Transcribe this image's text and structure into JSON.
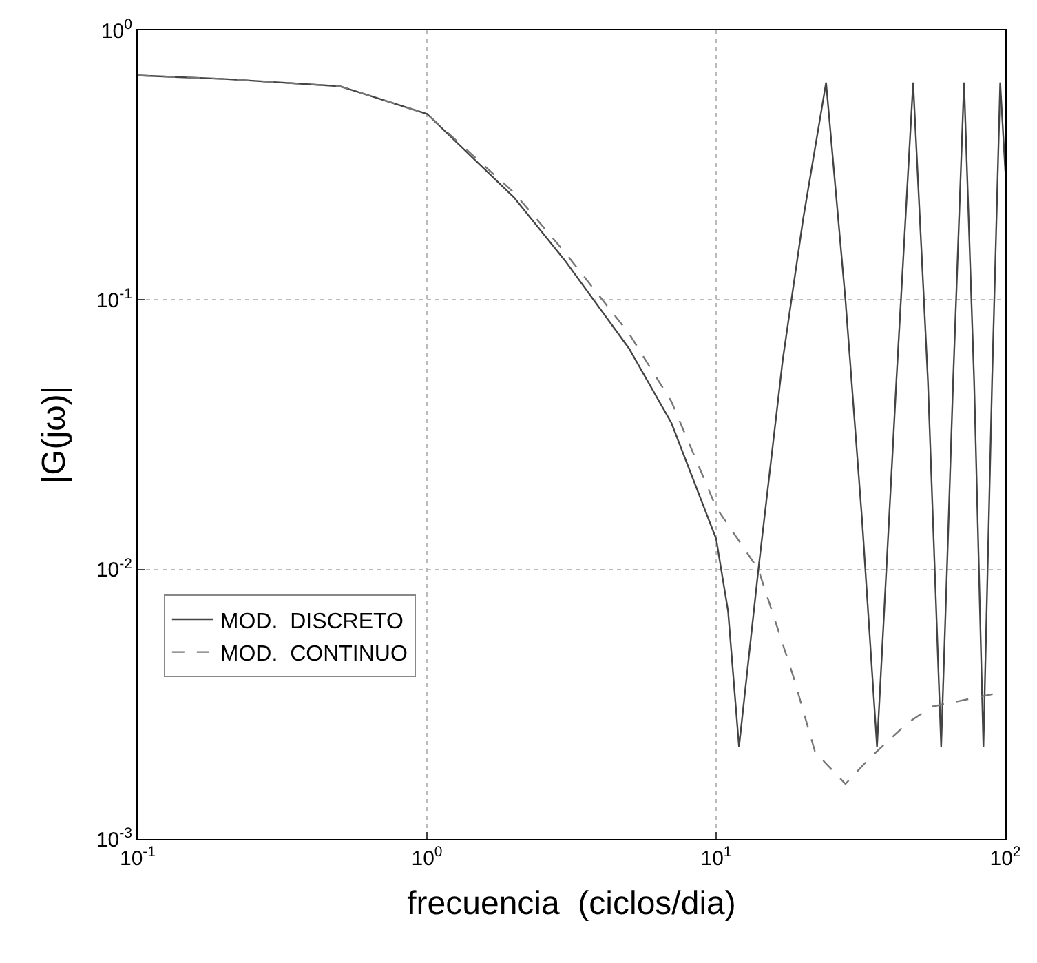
{
  "chart_data": {
    "type": "line",
    "xlabel": "frecuencia  (ciclos/dia)",
    "ylabel": "|G(jω)|",
    "log": "xy",
    "grid": true,
    "legend": "bottom left",
    "xlim": [
      0.1,
      100
    ],
    "ylim": [
      0.001,
      1
    ],
    "xticks": [
      {
        "value": 0.1,
        "label": "10$^{-1}$"
      },
      {
        "value": 1,
        "label": "10$^{0}$"
      },
      {
        "value": 10,
        "label": "10$^{1}$"
      },
      {
        "value": 100,
        "label": "10$^{2}$"
      }
    ],
    "yticks": [
      {
        "value": 0.001,
        "label": "10$^{-3}$"
      },
      {
        "value": 0.01,
        "label": "10$^{-2}$"
      },
      {
        "value": 0.1,
        "label": "10$^{-1}$"
      },
      {
        "value": 1,
        "label": "10$^{0}$"
      }
    ],
    "series": [
      {
        "name": "MOD.  DISCRETO",
        "color": "#444444",
        "line_style": "solid",
        "x": [
          0.1,
          0.2,
          0.5,
          1,
          2,
          3,
          5,
          7,
          10,
          11,
          12,
          14,
          17,
          20,
          24,
          28,
          32,
          36,
          42,
          48,
          54,
          60,
          66,
          72,
          78,
          84,
          90,
          96,
          100
        ],
        "values": [
          0.68,
          0.66,
          0.62,
          0.49,
          0.24,
          0.14,
          0.066,
          0.035,
          0.013,
          0.007,
          0.0022,
          0.01,
          0.06,
          0.2,
          0.64,
          0.1,
          0.015,
          0.0022,
          0.05,
          0.64,
          0.05,
          0.0022,
          0.05,
          0.64,
          0.05,
          0.0022,
          0.05,
          0.64,
          0.3
        ]
      },
      {
        "name": "MOD.  CONTINUO",
        "color": "#777777",
        "line_style": "dashed",
        "x": [
          0.1,
          0.2,
          0.5,
          1,
          2,
          3,
          5,
          7,
          10,
          14,
          18.5,
          22,
          28,
          34,
          46,
          56,
          97
        ],
        "values": [
          0.68,
          0.66,
          0.62,
          0.49,
          0.25,
          0.15,
          0.075,
          0.042,
          0.017,
          0.01,
          0.004,
          0.0021,
          0.0016,
          0.002,
          0.0027,
          0.0031,
          0.0035
        ]
      }
    ]
  }
}
